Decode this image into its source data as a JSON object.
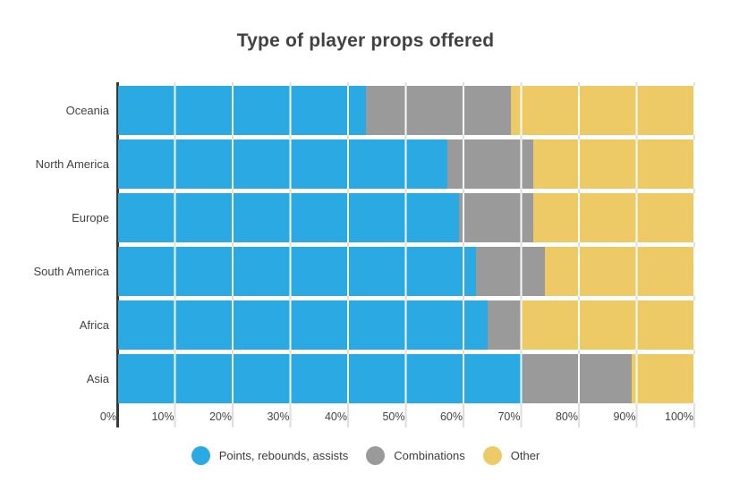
{
  "title": "Type of player props offered",
  "chart_data": {
    "type": "bar",
    "orientation": "horizontal",
    "stacked": true,
    "unit": "percent",
    "title": "Type of player props offered",
    "categories": [
      "Oceania",
      "North America",
      "Europe",
      "South America",
      "Africa",
      "Asia"
    ],
    "series": [
      {
        "name": "Points, rebounds, assists",
        "color": "#2AA9E2",
        "values": [
          43,
          57,
          59,
          62,
          64,
          70
        ]
      },
      {
        "name": "Combinations",
        "color": "#9A9A9A",
        "values": [
          25,
          15,
          13,
          12,
          6,
          19
        ]
      },
      {
        "name": "Other",
        "color": "#EDCA66",
        "values": [
          32,
          28,
          28,
          26,
          30,
          11
        ]
      }
    ],
    "x_ticks": [
      "0%",
      "10%",
      "20%",
      "30%",
      "40%",
      "50%",
      "60%",
      "70%",
      "80%",
      "90%",
      "100%"
    ],
    "xlim": [
      0,
      100
    ],
    "grid": "vertical",
    "legend_position": "bottom",
    "axis_color": "#3a3a3a",
    "gridline_color": "#dedede",
    "text_color": "#424242"
  }
}
